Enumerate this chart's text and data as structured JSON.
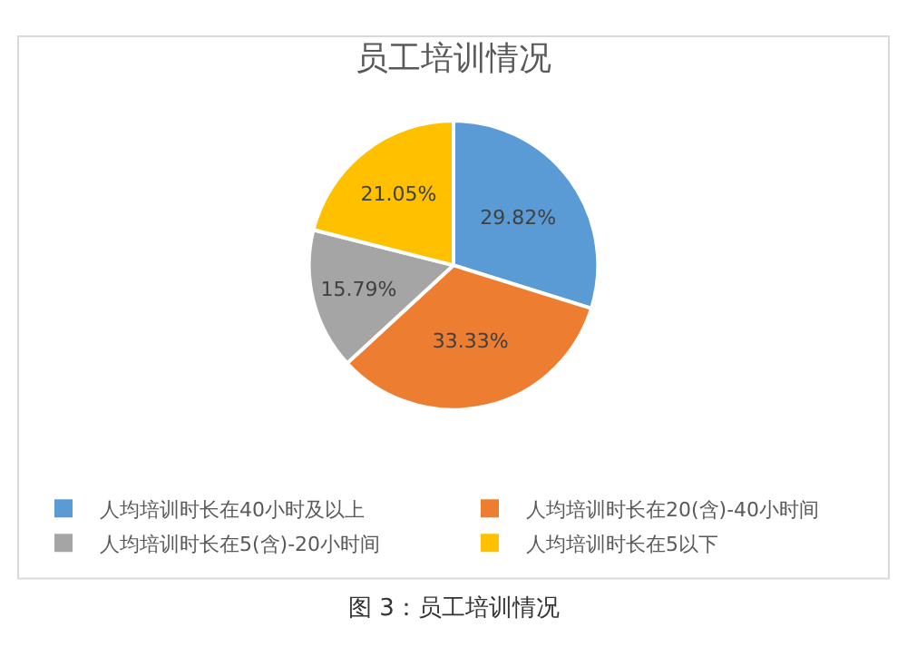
{
  "chart_data": {
    "type": "pie",
    "title": "员工培训情况",
    "categories": [
      "人均培训时长在40小时及以上",
      "人均培训时长在20(含)-40小时间",
      "人均培训时长在5(含)-20小时间",
      "人均培训时长在5以下"
    ],
    "values": [
      29.82,
      33.33,
      15.79,
      21.05
    ],
    "value_labels": [
      "29.82%",
      "33.33%",
      "15.79%",
      "21.05%"
    ],
    "colors": [
      "#5b9bd5",
      "#ed7d31",
      "#a5a5a5",
      "#ffc000"
    ],
    "legend": "bottom",
    "annotations": [
      "图 3：员工培训情况"
    ]
  }
}
